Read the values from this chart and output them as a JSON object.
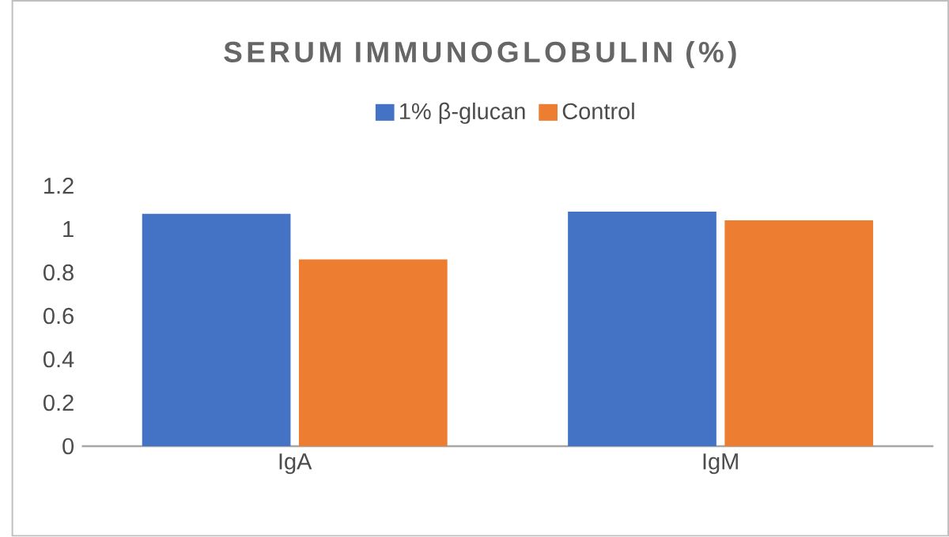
{
  "chart_data": {
    "type": "bar",
    "title": "SERUM IMMUNOGLOBULIN (%)",
    "categories": [
      "IgA",
      "IgM"
    ],
    "series": [
      {
        "name": "1% β-glucan",
        "color": "#4472c4",
        "values": [
          1.07,
          1.08
        ]
      },
      {
        "name": "Control",
        "color": "#ed7d31",
        "values": [
          0.86,
          1.04
        ]
      }
    ],
    "ylim": [
      0,
      1.2
    ],
    "yticks": [
      0,
      0.2,
      0.4,
      0.6,
      0.8,
      1,
      1.2
    ],
    "legend": "top"
  }
}
